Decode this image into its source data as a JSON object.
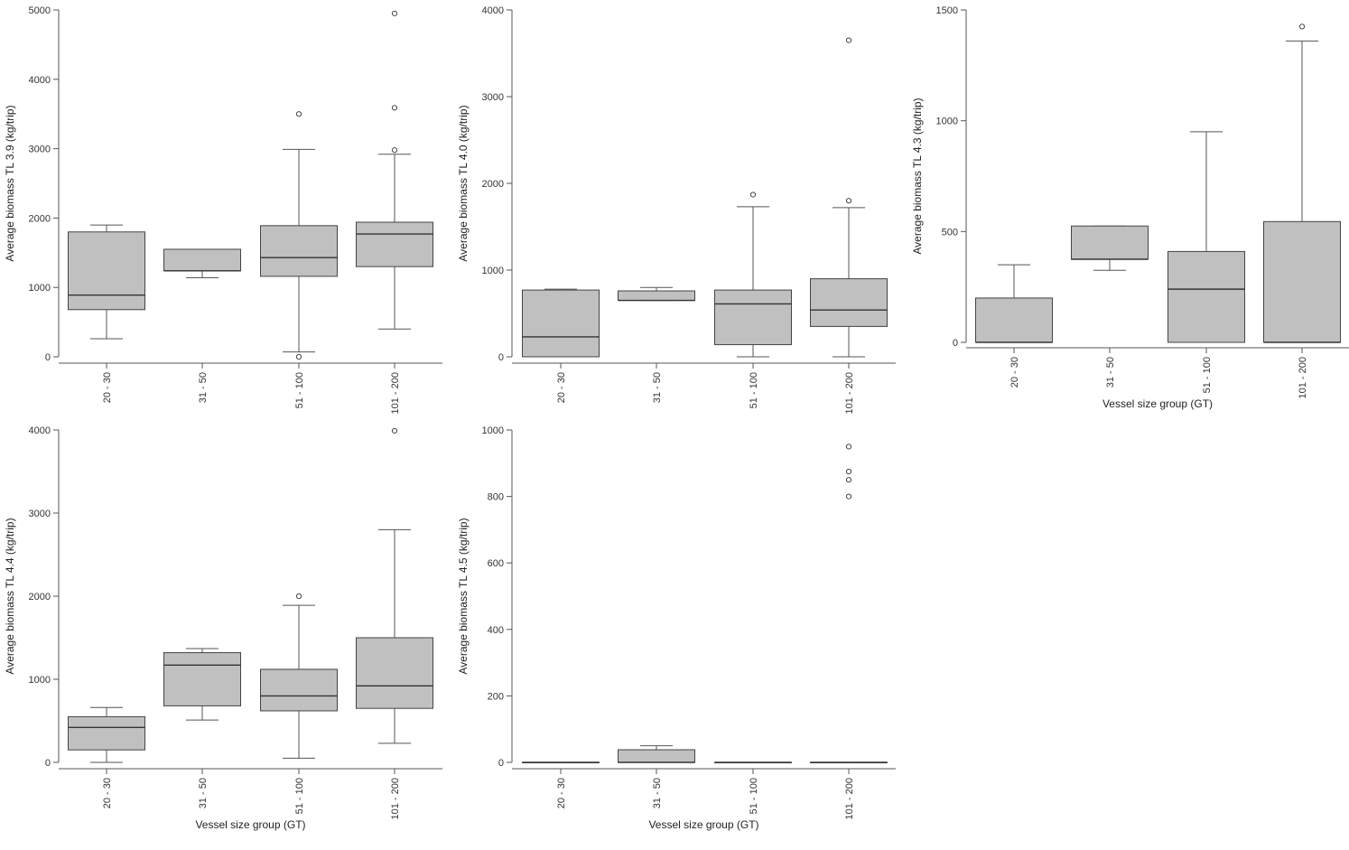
{
  "chart_data": [
    {
      "type": "box",
      "ylabel": "Average biomass TL 3.9 (kg/trip)",
      "xlabel": "",
      "ylim": [
        0,
        5000
      ],
      "yticks": [
        0,
        1000,
        2000,
        3000,
        4000,
        5000
      ],
      "categories": [
        "20 - 30",
        "31 - 50",
        "51 - 100",
        "101 - 200"
      ],
      "boxes": [
        {
          "category": "20 - 30",
          "whisker_low": 260,
          "q1": 680,
          "median": 890,
          "q3": 1800,
          "whisker_high": 1900,
          "outliers": []
        },
        {
          "category": "31 - 50",
          "whisker_low": 1140,
          "q1": 1240,
          "median": 1240,
          "q3": 1550,
          "whisker_high": 1550,
          "outliers": []
        },
        {
          "category": "51 - 100",
          "whisker_low": 70,
          "q1": 1160,
          "median": 1430,
          "q3": 1890,
          "whisker_high": 2990,
          "outliers": [
            0,
            3500
          ]
        },
        {
          "category": "101 - 200",
          "whisker_low": 400,
          "q1": 1300,
          "median": 1770,
          "q3": 1940,
          "whisker_high": 2920,
          "outliers": [
            2980,
            3590,
            4950
          ]
        }
      ]
    },
    {
      "type": "box",
      "ylabel": "Average biomass TL 4.0 (kg/trip)",
      "xlabel": "",
      "ylim": [
        0,
        4000
      ],
      "yticks": [
        0,
        1000,
        2000,
        3000,
        4000
      ],
      "categories": [
        "20 - 30",
        "31 - 50",
        "51 - 100",
        "101 - 200"
      ],
      "boxes": [
        {
          "category": "20 - 30",
          "whisker_low": 0,
          "q1": 0,
          "median": 230,
          "q3": 770,
          "whisker_high": 780,
          "outliers": []
        },
        {
          "category": "31 - 50",
          "whisker_low": 650,
          "q1": 650,
          "median": 650,
          "q3": 760,
          "whisker_high": 800,
          "outliers": []
        },
        {
          "category": "51 - 100",
          "whisker_low": 0,
          "q1": 140,
          "median": 610,
          "q3": 770,
          "whisker_high": 1730,
          "outliers": [
            1870
          ]
        },
        {
          "category": "101 - 200",
          "whisker_low": 0,
          "q1": 350,
          "median": 540,
          "q3": 900,
          "whisker_high": 1720,
          "outliers": [
            1800,
            3650
          ]
        }
      ]
    },
    {
      "type": "box",
      "ylabel": "Average biomass TL 4.3 (kg/trip)",
      "xlabel": "Vessel size group (GT)",
      "ylim": [
        0,
        1500
      ],
      "yticks": [
        0,
        500,
        1000,
        1500
      ],
      "categories": [
        "20 - 30",
        "31 - 50",
        "51 - 100",
        "101 - 200"
      ],
      "boxes": [
        {
          "category": "20 - 30",
          "whisker_low": 0,
          "q1": 0,
          "median": 0,
          "q3": 200,
          "whisker_high": 350,
          "outliers": []
        },
        {
          "category": "31 - 50",
          "whisker_low": 325,
          "q1": 375,
          "median": 375,
          "q3": 525,
          "whisker_high": 525,
          "outliers": []
        },
        {
          "category": "51 - 100",
          "whisker_low": 0,
          "q1": 0,
          "median": 240,
          "q3": 410,
          "whisker_high": 950,
          "outliers": []
        },
        {
          "category": "101 - 200",
          "whisker_low": 0,
          "q1": 0,
          "median": 0,
          "q3": 545,
          "whisker_high": 1360,
          "outliers": [
            1425
          ]
        }
      ]
    },
    {
      "type": "box",
      "ylabel": "Average biomass TL 4.4 (kg/trip)",
      "xlabel": "Vessel size group (GT)",
      "ylim": [
        0,
        4000
      ],
      "yticks": [
        0,
        1000,
        2000,
        3000,
        4000
      ],
      "categories": [
        "20 - 30",
        "31 - 50",
        "51 - 100",
        "101 - 200"
      ],
      "boxes": [
        {
          "category": "20 - 30",
          "whisker_low": 0,
          "q1": 150,
          "median": 420,
          "q3": 550,
          "whisker_high": 660,
          "outliers": []
        },
        {
          "category": "31 - 50",
          "whisker_low": 510,
          "q1": 680,
          "median": 1170,
          "q3": 1320,
          "whisker_high": 1370,
          "outliers": []
        },
        {
          "category": "51 - 100",
          "whisker_low": 50,
          "q1": 620,
          "median": 800,
          "q3": 1120,
          "whisker_high": 1890,
          "outliers": [
            2000
          ]
        },
        {
          "category": "101 - 200",
          "whisker_low": 230,
          "q1": 650,
          "median": 920,
          "q3": 1500,
          "whisker_high": 2800,
          "outliers": [
            3990
          ]
        }
      ]
    },
    {
      "type": "box",
      "ylabel": "Average biomass TL 4.5 (kg/trip)",
      "xlabel": "Vessel size group (GT)",
      "ylim": [
        0,
        1000
      ],
      "yticks": [
        0,
        200,
        400,
        600,
        800,
        1000
      ],
      "categories": [
        "20 - 30",
        "31 - 50",
        "51 - 100",
        "101 - 200"
      ],
      "boxes": [
        {
          "category": "20 - 30",
          "whisker_low": 0,
          "q1": 0,
          "median": 0,
          "q3": 0,
          "whisker_high": 0,
          "outliers": []
        },
        {
          "category": "31 - 50",
          "whisker_low": 0,
          "q1": 0,
          "median": 0,
          "q3": 38,
          "whisker_high": 50,
          "outliers": []
        },
        {
          "category": "51 - 100",
          "whisker_low": 0,
          "q1": 0,
          "median": 0,
          "q3": 0,
          "whisker_high": 0,
          "outliers": []
        },
        {
          "category": "101 - 200",
          "whisker_low": 0,
          "q1": 0,
          "median": 0,
          "q3": 0,
          "whisker_high": 0,
          "outliers": [
            800,
            850,
            875,
            950
          ]
        }
      ]
    }
  ]
}
